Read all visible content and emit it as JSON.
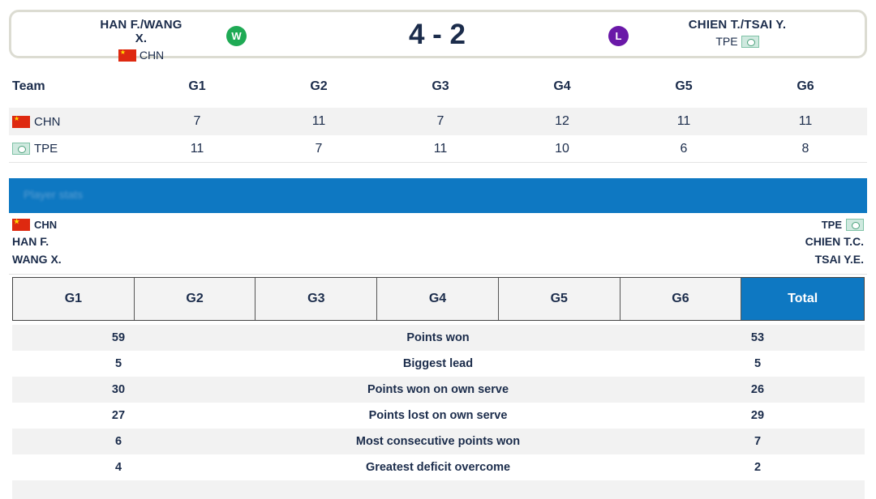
{
  "scoreboard": {
    "left_pair": "HAN F./WANG X.",
    "left_nat": "CHN",
    "left_result": "W",
    "score": "4 - 2",
    "right_pair": "CHIEN T./TSAI Y.",
    "right_nat": "TPE",
    "right_result": "L",
    "colors": {
      "win": "#1faa55",
      "loss": "#6a18a8"
    }
  },
  "games": {
    "header": [
      "Team",
      "G1",
      "G2",
      "G3",
      "G4",
      "G5",
      "G6"
    ],
    "rows": [
      {
        "team": "CHN",
        "scores": [
          "7",
          "11",
          "7",
          "12",
          "11",
          "11"
        ]
      },
      {
        "team": "TPE",
        "scores": [
          "11",
          "7",
          "11",
          "10",
          "6",
          "8"
        ]
      }
    ]
  },
  "banner": {
    "text": "Player stats",
    "color": "#0e78c2"
  },
  "players": {
    "left": {
      "nat": "CHN",
      "names": [
        "HAN F.",
        "WANG X."
      ]
    },
    "right": {
      "nat": "TPE",
      "names": [
        "CHIEN T.C.",
        "TSAI Y.E."
      ]
    }
  },
  "tabs": [
    "G1",
    "G2",
    "G3",
    "G4",
    "G5",
    "G6",
    "Total"
  ],
  "active_tab": "Total",
  "stats": [
    {
      "left": "59",
      "label": "Points won",
      "right": "53"
    },
    {
      "left": "5",
      "label": "Biggest lead",
      "right": "5"
    },
    {
      "left": "30",
      "label": "Points won on own serve",
      "right": "26"
    },
    {
      "left": "27",
      "label": "Points lost on own serve",
      "right": "29"
    },
    {
      "left": "6",
      "label": "Most consecutive points won",
      "right": "7"
    },
    {
      "left": "4",
      "label": "Greatest deficit overcome",
      "right": "2"
    }
  ]
}
